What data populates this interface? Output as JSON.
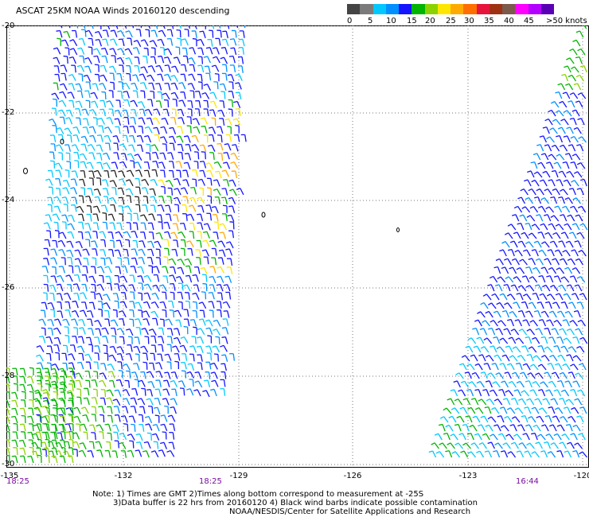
{
  "header": {
    "title": "ASCAT 25KM NOAA Winds 20160120 descending"
  },
  "legend": {
    "colors": [
      "#444444",
      "#7b7b7b",
      "#00c8ff",
      "#0090ff",
      "#1414ff",
      "#00b400",
      "#8cd200",
      "#ffe600",
      "#ffaa00",
      "#ff6e00",
      "#e6143c",
      "#a03214",
      "#7d5a4b",
      "#ff00ff",
      "#b400ff",
      "#5a00b4"
    ],
    "labels": [
      "0",
      "5",
      "10",
      "15",
      "20",
      "25",
      "30",
      "35",
      "40",
      "45",
      ">50 knots"
    ]
  },
  "axes": {
    "y_labels": [
      "-20",
      "-22",
      "-24",
      "-26",
      "-28",
      "-30"
    ],
    "x_labels": [
      "-135",
      "-132",
      "-129",
      "-126",
      "-123",
      "-120"
    ],
    "times": [
      "18:25",
      "18:25",
      "16:44"
    ]
  },
  "notes": {
    "line1": "Note: 1) Times are GMT 2)Times along bottom correspond to measurement at -25S",
    "line2": "3)Data buffer is 22 hrs from 20160120 4) Black wind barbs indicate possible contamination",
    "line3": "NOAA/NESDIS/Center for Satellite Applications and Research"
  }
}
